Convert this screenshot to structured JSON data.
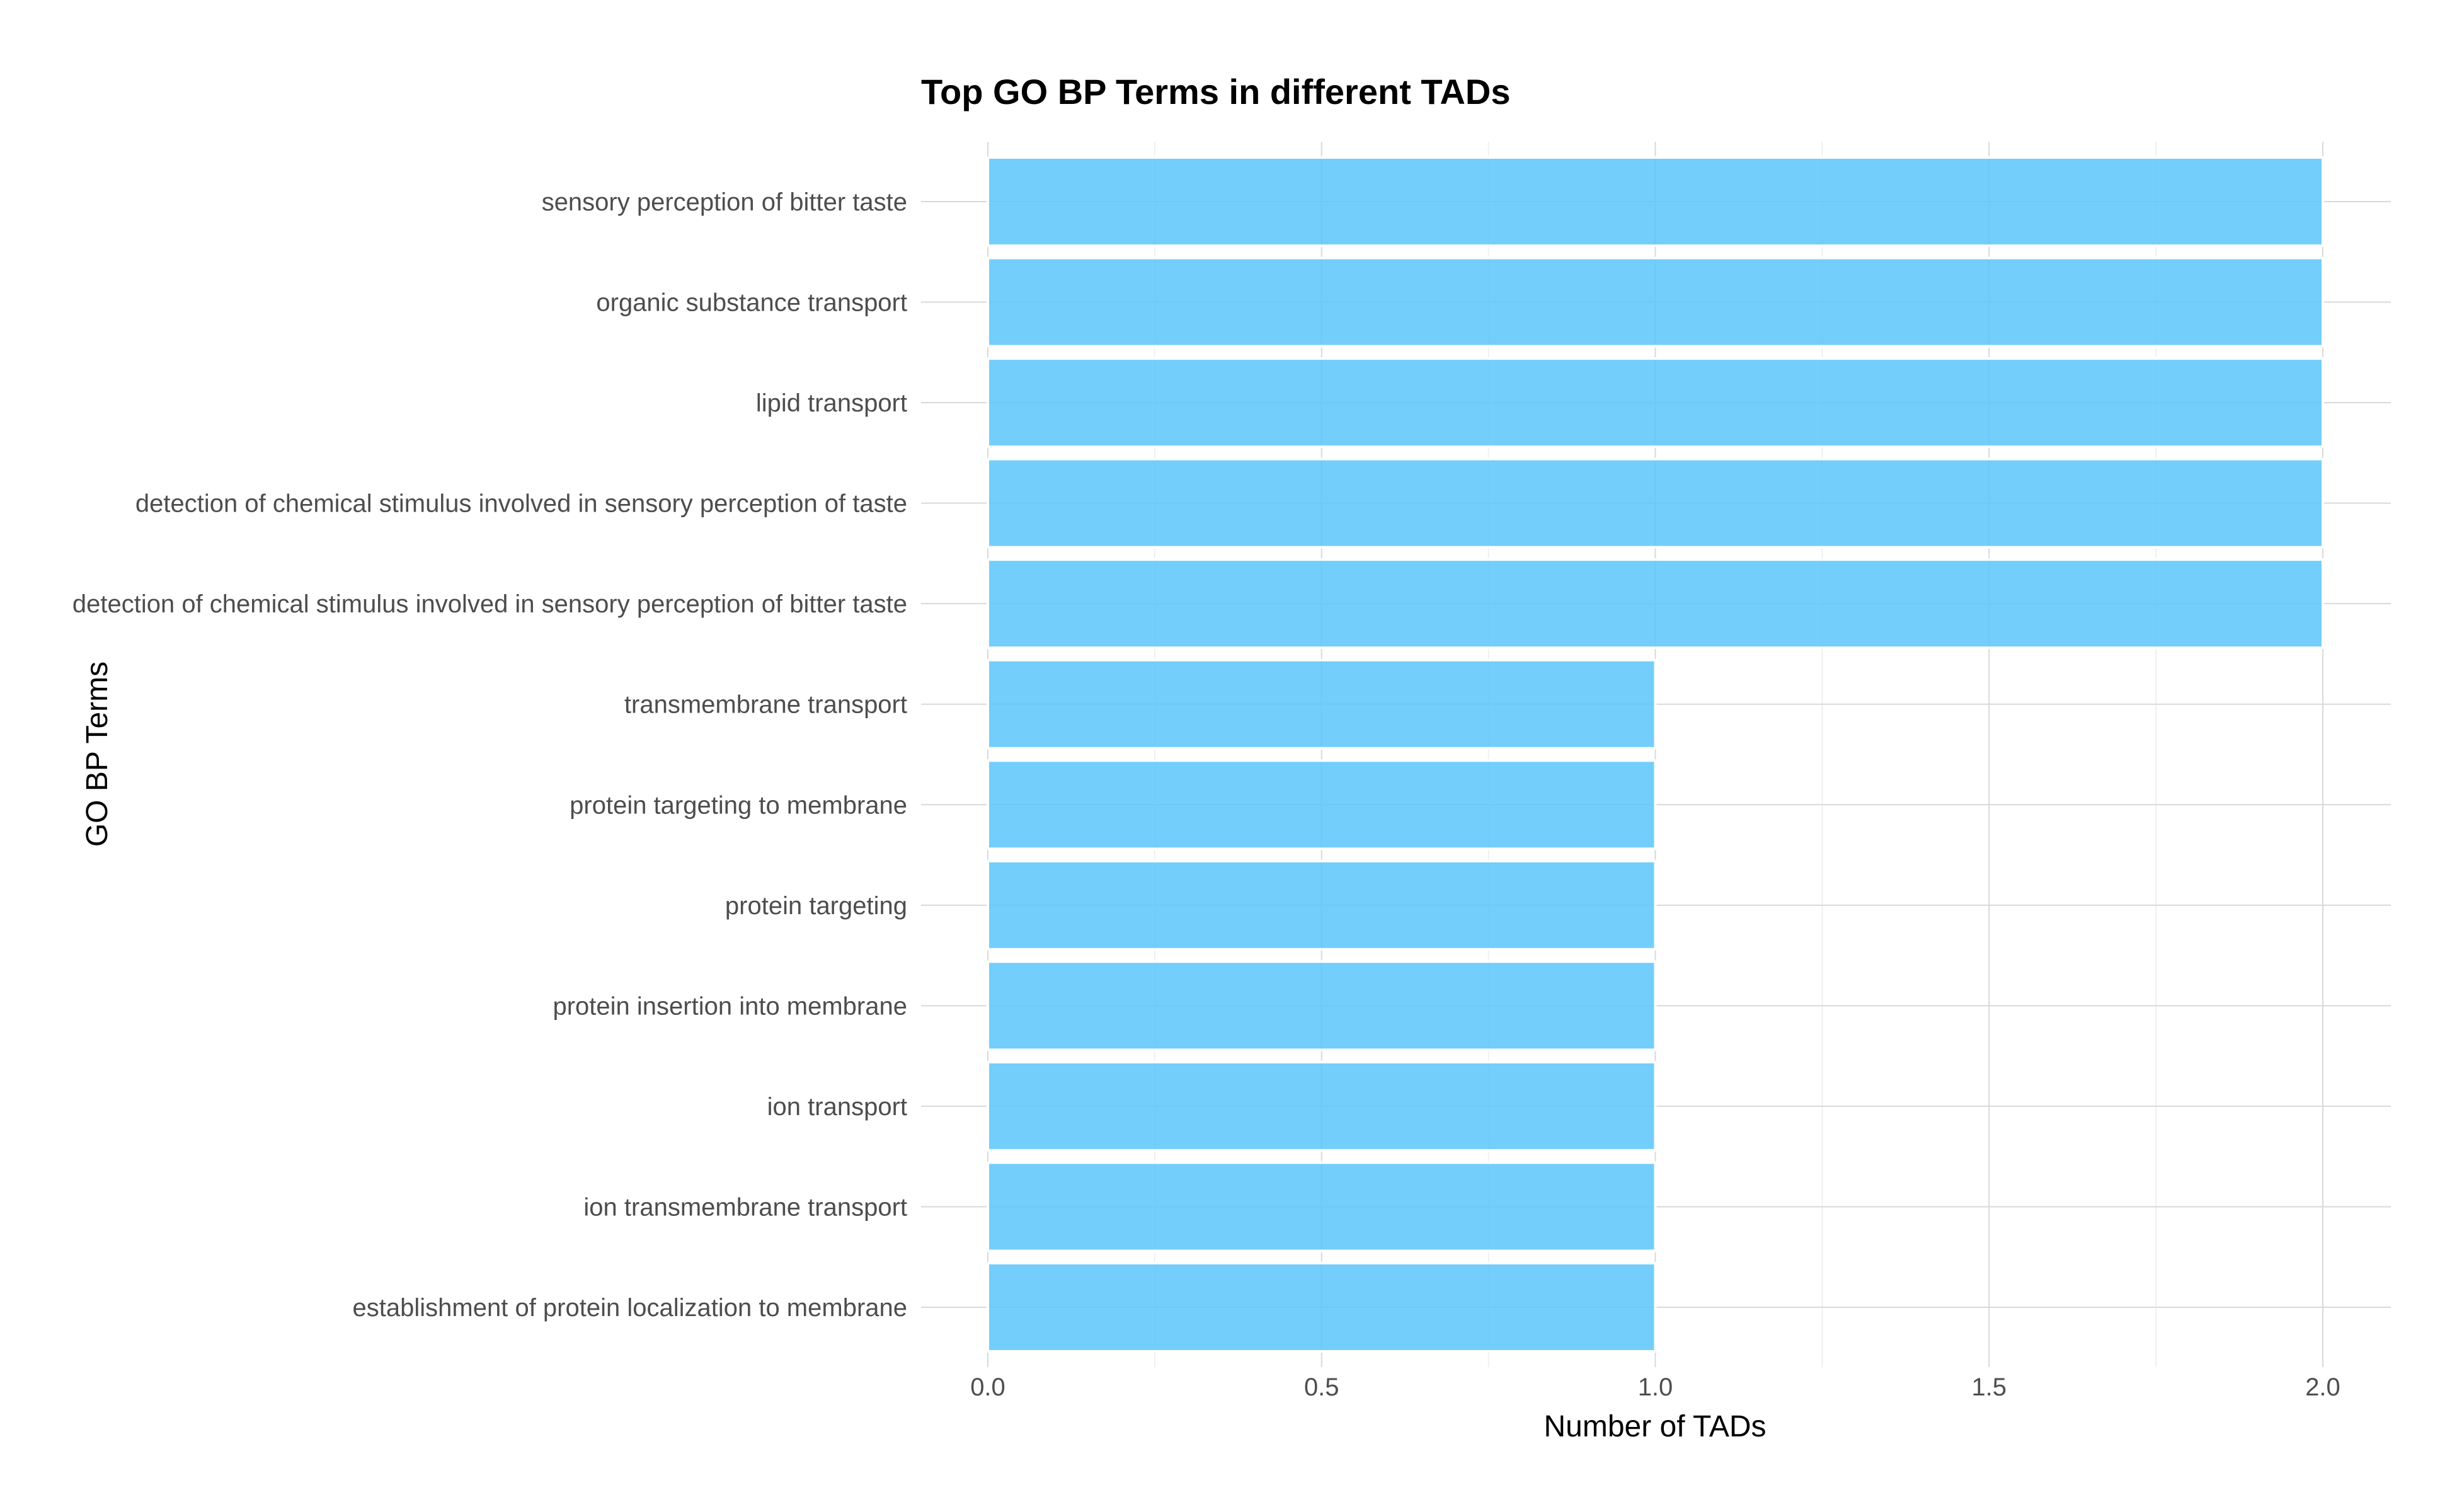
{
  "chart_data": {
    "type": "bar",
    "orientation": "horizontal",
    "title": "Top GO BP Terms in different TADs",
    "xlabel": "Number of TADs",
    "ylabel": "GO BP Terms",
    "categories": [
      "sensory perception of bitter taste",
      "organic substance transport",
      "lipid transport",
      "detection of chemical stimulus involved in sensory perception of taste",
      "detection of chemical stimulus involved in sensory perception of bitter taste",
      "transmembrane transport",
      "protein targeting to membrane",
      "protein targeting",
      "protein insertion into membrane",
      "ion transport",
      "ion transmembrane transport",
      "establishment of protein localization to membrane"
    ],
    "values": [
      2,
      2,
      2,
      2,
      2,
      1,
      1,
      1,
      1,
      1,
      1,
      1
    ],
    "xticks": [
      "0.0",
      "0.5",
      "1.0",
      "1.5",
      "2.0"
    ],
    "xlim": [
      -0.1,
      2.1
    ],
    "grid": true,
    "bar_color": "#5bc5fa",
    "bar_outline": "#ffffff"
  }
}
